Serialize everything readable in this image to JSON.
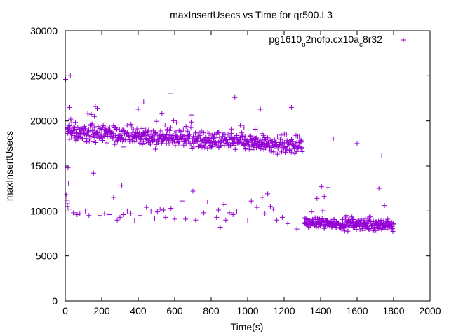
{
  "chart_data": {
    "type": "scatter",
    "title": "maxInsertUsecs vs Time for qr500.L3",
    "xlabel": "Time(s)",
    "ylabel": "maxInsertUsecs",
    "xlim": [
      0,
      2000
    ],
    "ylim": [
      0,
      30000
    ],
    "xticks": [
      0,
      200,
      400,
      600,
      800,
      1000,
      1200,
      1400,
      1600,
      1800,
      2000
    ],
    "yticks": [
      0,
      5000,
      10000,
      15000,
      20000,
      25000,
      30000
    ],
    "legend_position": "top-right",
    "series": [
      {
        "name": "pg1610_o2nofp.cx10a_c8r32",
        "legend_parts": [
          {
            "text": "pg1610",
            "sub": false
          },
          {
            "text": "o",
            "sub": true
          },
          {
            "text": "2nofp.cx10a",
            "sub": false
          },
          {
            "text": "c",
            "sub": true
          },
          {
            "text": "8r32",
            "sub": false
          }
        ],
        "color": "#9400d3",
        "marker": "plus",
        "bands": [
          {
            "x0": 10,
            "x1": 1300,
            "y0": 18800,
            "y1": 17200,
            "n": 650,
            "spread": 700
          },
          {
            "x0": 1310,
            "x1": 1800,
            "y0": 8700,
            "y1": 8400,
            "n": 260,
            "spread": 450
          }
        ],
        "points": [
          [
            2,
            24600
          ],
          [
            5,
            11800
          ],
          [
            8,
            11200
          ],
          [
            10,
            10800
          ],
          [
            12,
            10500
          ],
          [
            15,
            14800
          ],
          [
            18,
            13100
          ],
          [
            20,
            10200
          ],
          [
            22,
            11000
          ],
          [
            25,
            21500
          ],
          [
            28,
            25000
          ],
          [
            30,
            20200
          ],
          [
            35,
            19800
          ],
          [
            45,
            9800
          ],
          [
            65,
            9600
          ],
          [
            80,
            9700
          ],
          [
            110,
            10000
          ],
          [
            130,
            9500
          ],
          [
            155,
            14200
          ],
          [
            160,
            20500
          ],
          [
            165,
            21600
          ],
          [
            175,
            21400
          ],
          [
            190,
            9500
          ],
          [
            215,
            9700
          ],
          [
            240,
            9600
          ],
          [
            265,
            11500
          ],
          [
            285,
            9000
          ],
          [
            300,
            9300
          ],
          [
            310,
            12800
          ],
          [
            320,
            9600
          ],
          [
            340,
            10000
          ],
          [
            360,
            9700
          ],
          [
            380,
            8900
          ],
          [
            400,
            21300
          ],
          [
            410,
            9500
          ],
          [
            430,
            22100
          ],
          [
            445,
            10400
          ],
          [
            470,
            10000
          ],
          [
            490,
            9200
          ],
          [
            505,
            9900
          ],
          [
            520,
            10200
          ],
          [
            530,
            20800
          ],
          [
            540,
            10100
          ],
          [
            550,
            9300
          ],
          [
            575,
            23000
          ],
          [
            580,
            10300
          ],
          [
            600,
            9100
          ],
          [
            610,
            19800
          ],
          [
            640,
            11100
          ],
          [
            660,
            9100
          ],
          [
            700,
            12200
          ],
          [
            715,
            9000
          ],
          [
            760,
            9800
          ],
          [
            780,
            11000
          ],
          [
            830,
            9300
          ],
          [
            840,
            10100
          ],
          [
            850,
            8200
          ],
          [
            870,
            10700
          ],
          [
            880,
            9000
          ],
          [
            900,
            9800
          ],
          [
            910,
            19100
          ],
          [
            920,
            9600
          ],
          [
            930,
            22600
          ],
          [
            940,
            10000
          ],
          [
            960,
            19500
          ],
          [
            980,
            19300
          ],
          [
            1000,
            8900
          ],
          [
            1020,
            11100
          ],
          [
            1035,
            18100
          ],
          [
            1050,
            10400
          ],
          [
            1070,
            21300
          ],
          [
            1080,
            11500
          ],
          [
            1095,
            9700
          ],
          [
            1110,
            11900
          ],
          [
            1125,
            10500
          ],
          [
            1140,
            10200
          ],
          [
            1160,
            9000
          ],
          [
            1190,
            9300
          ],
          [
            1220,
            8600
          ],
          [
            1240,
            21500
          ],
          [
            1270,
            8000
          ],
          [
            1350,
            9900
          ],
          [
            1380,
            11400
          ],
          [
            1405,
            12700
          ],
          [
            1420,
            11600
          ],
          [
            1440,
            12600
          ],
          [
            1470,
            18000
          ],
          [
            1600,
            17500
          ],
          [
            1720,
            12500
          ],
          [
            1735,
            16200
          ],
          [
            1750,
            10600
          ]
        ]
      }
    ]
  }
}
